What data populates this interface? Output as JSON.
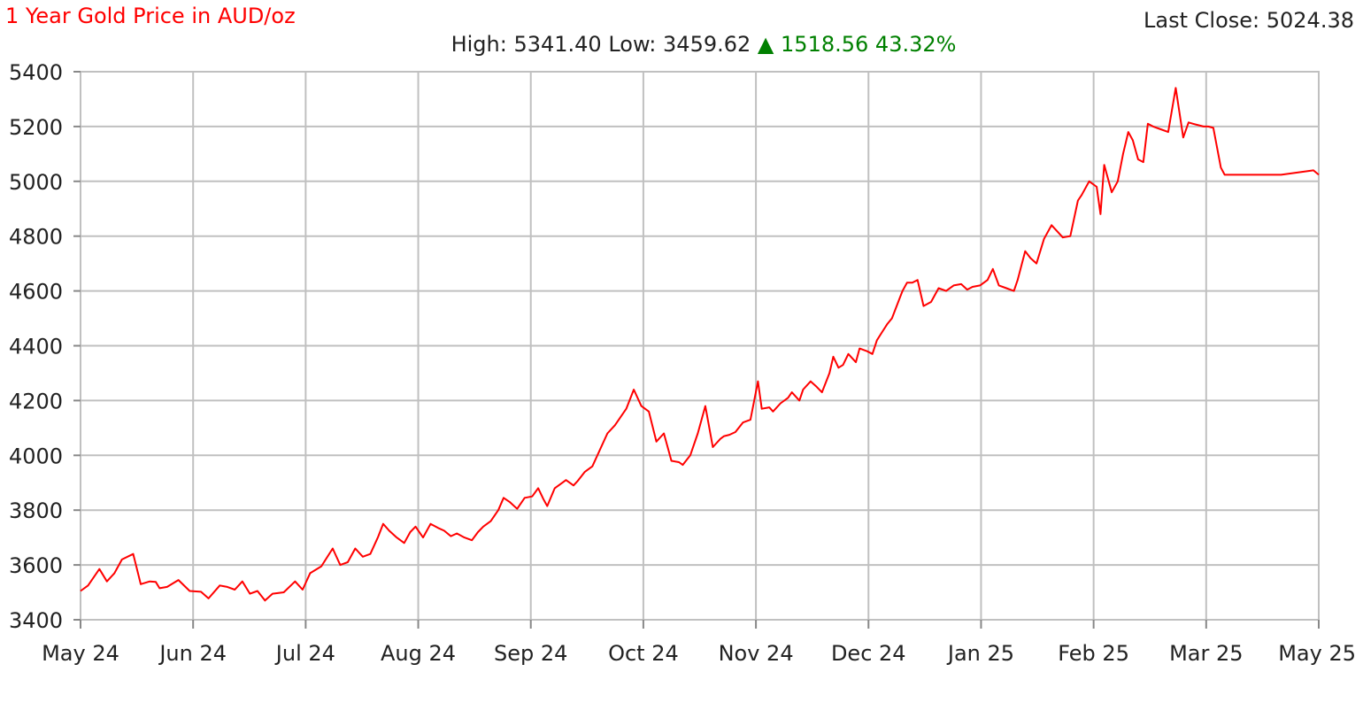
{
  "chart_data": {
    "type": "line",
    "title": "1 Year Gold Price in AUD/oz",
    "last_close_label": "Last Close:",
    "last_close_value": "5024.38",
    "high_label": "High:",
    "high_value": "5341.40",
    "low_label": "Low:",
    "low_value": "3459.62",
    "change_arrow": "▲",
    "change_value": "1518.56",
    "change_pct": "43.32%",
    "xlabel": "",
    "ylabel": "",
    "ylim": [
      3400,
      5400
    ],
    "yticks": [
      3400,
      3600,
      3800,
      4000,
      4200,
      4400,
      4600,
      4800,
      5000,
      5200,
      5400
    ],
    "xticks": [
      "May 24",
      "Jun 24",
      "Jul 24",
      "Aug 24",
      "Sep 24",
      "Oct 24",
      "Nov 24",
      "Dec 24",
      "Jan 25",
      "Feb 25",
      "Mar 25",
      "May 25"
    ],
    "grid": true,
    "colors": {
      "line": "#ff0000",
      "title": "#ff0000",
      "change": "#008000",
      "grid": "#c0c0c0",
      "axis": "#888888"
    },
    "series": [
      {
        "x": [
          0,
          0.1,
          0.25,
          0.35,
          0.45,
          0.55,
          0.7,
          0.8,
          0.92,
          1.0,
          1.05,
          1.15,
          1.3,
          1.45,
          1.6,
          1.7,
          1.85,
          1.95,
          2.05,
          2.15,
          2.25,
          2.35,
          2.45,
          2.55,
          2.7,
          2.85,
          2.95,
          3.05,
          3.2,
          3.35,
          3.45,
          3.55,
          3.65,
          3.75,
          3.85,
          3.95,
          4.02,
          4.1,
          4.2,
          4.3,
          4.38,
          4.45,
          4.55,
          4.65,
          4.75,
          4.83,
          4.92,
          5.0,
          5.1,
          5.2,
          5.28,
          5.35,
          5.45,
          5.55,
          5.62,
          5.7,
          5.8,
          5.9,
          6.0,
          6.08,
          6.15,
          6.2,
          6.3,
          6.45,
          6.55,
          6.6,
          6.7,
          6.8,
          6.9,
          7.0,
          7.1,
          7.2,
          7.25,
          7.35,
          7.45,
          7.55,
          7.65,
          7.75,
          7.85,
          7.95,
          8.0,
          8.1,
          8.2,
          8.3,
          8.4,
          8.5,
          8.55,
          8.62,
          8.7,
          8.8,
          8.9,
          9.0,
          9.05,
          9.15,
          9.2,
          9.3,
          9.4,
          9.45,
          9.55,
          9.6,
          9.7,
          9.78,
          9.85,
          9.95,
          10.0,
          10.07,
          10.13,
          10.2,
          10.3,
          10.35,
          10.45,
          10.52,
          10.58,
          10.65,
          10.72,
          10.78,
          10.85,
          10.92,
          10.98
        ],
        "y": [
          3505,
          3525,
          3585,
          3540,
          3570,
          3620,
          3640,
          3530,
          3540,
          3538,
          3515,
          3520,
          3545,
          3505,
          3502,
          3478,
          3525,
          3520,
          3510,
          3540,
          3495,
          3505,
          3470,
          3495,
          3500,
          3540,
          3510,
          3570,
          3595,
          3660,
          3600,
          3610,
          3660,
          3630,
          3640,
          3700,
          3750,
          3725,
          3700,
          3680,
          3720,
          3740,
          3700,
          3750,
          3735,
          3725,
          3705,
          3715,
          3700,
          3690,
          3720,
          3740,
          3760,
          3800,
          3845,
          3830,
          3805,
          3845,
          3850,
          3880,
          3840,
          3815,
          3880,
          3910,
          3890,
          3905,
          3940,
          3960,
          4020,
          4080,
          4110,
          4150,
          4170,
          4240,
          4180,
          4160,
          4050,
          4080,
          3980,
          3975,
          3965,
          4000,
          4080,
          4180,
          4030,
          4060,
          4070,
          4075,
          4085,
          4120,
          4130,
          4270,
          4170,
          4175,
          4160,
          4190,
          4210,
          4230,
          4200,
          4240,
          4270,
          4250,
          4230,
          4300,
          4360,
          4320,
          4330,
          4370,
          4340,
          4390,
          4380,
          4370,
          4420,
          4450,
          4480,
          4500,
          4550,
          4600,
          4630
        ],
        "note_unused": ""
      },
      {
        "x": [
          11.05,
          11.12,
          11.2,
          11.3,
          11.4,
          11.5,
          11.6,
          11.7,
          11.78,
          11.85,
          11.95,
          12.05,
          12.12,
          12.2,
          12.3,
          12.4,
          12.45,
          12.55,
          12.62,
          12.7,
          12.8,
          12.9,
          13.0,
          13.05,
          13.15,
          13.25,
          13.3,
          13.4,
          13.5,
          13.55,
          13.6,
          13.7,
          13.78,
          13.85,
          13.92,
          13.98,
          14.05,
          14.12,
          14.18,
          14.25,
          14.35,
          14.45,
          14.55,
          14.65,
          14.72,
          14.78,
          14.85,
          14.92,
          14.98,
          15.05,
          15.15,
          15.2,
          15.27,
          15.35,
          15.45,
          15.55,
          15.62,
          15.68,
          15.72,
          15.78,
          15.85,
          15.95,
          16.05,
          16.12,
          16.18,
          16.3,
          16.38,
          16.45
        ],
        "y": [
          4630,
          4640,
          4545,
          4560,
          4610,
          4600,
          4620,
          4625,
          4605,
          4615,
          4620,
          4640,
          4680,
          4620,
          4610,
          4600,
          4640,
          4745,
          4720,
          4700,
          4790,
          4840,
          4810,
          4795,
          4800,
          4930,
          4950,
          5000,
          4980,
          4880,
          5060,
          4960,
          5000,
          5100,
          5180,
          5150,
          5080,
          5070,
          5210,
          5200,
          5190,
          5180,
          5341,
          5160,
          5215,
          5210,
          5205,
          5200,
          5200,
          5195,
          5050,
          5024,
          5024,
          5024,
          5024,
          5024,
          5024,
          5024,
          5024,
          5024,
          5024,
          5024,
          5024,
          5024,
          5024,
          5024,
          5024,
          5024
        ]
      }
    ]
  }
}
